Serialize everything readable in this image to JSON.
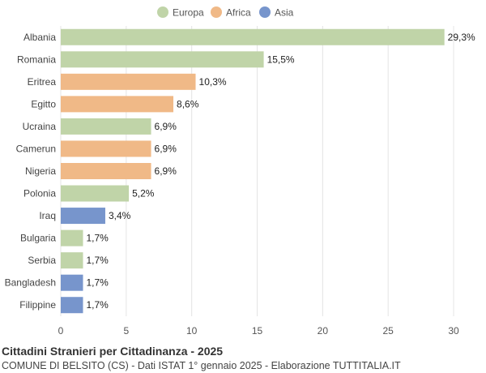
{
  "chart_data": {
    "type": "bar",
    "orientation": "horizontal",
    "title": "Cittadini Stranieri per Cittadinanza - 2025",
    "subtitle": "COMUNE DI BELSITO (CS) - Dati ISTAT 1° gennaio 2025 - Elaborazione TUTTITALIA.IT",
    "legend": [
      {
        "name": "Europa",
        "color": "#c0d4a8"
      },
      {
        "name": "Africa",
        "color": "#f0b987"
      },
      {
        "name": "Asia",
        "color": "#7795cc"
      }
    ],
    "legend_position": "top-center",
    "grid": true,
    "xlim": [
      0,
      30
    ],
    "xticks": [
      0,
      5,
      10,
      15,
      20,
      25,
      30
    ],
    "bars": [
      {
        "category": "Albania",
        "value": 29.3,
        "label": "29,3%",
        "group": "Europa"
      },
      {
        "category": "Romania",
        "value": 15.5,
        "label": "15,5%",
        "group": "Europa"
      },
      {
        "category": "Eritrea",
        "value": 10.3,
        "label": "10,3%",
        "group": "Africa"
      },
      {
        "category": "Egitto",
        "value": 8.6,
        "label": "8,6%",
        "group": "Africa"
      },
      {
        "category": "Ucraina",
        "value": 6.9,
        "label": "6,9%",
        "group": "Europa"
      },
      {
        "category": "Camerun",
        "value": 6.9,
        "label": "6,9%",
        "group": "Africa"
      },
      {
        "category": "Nigeria",
        "value": 6.9,
        "label": "6,9%",
        "group": "Africa"
      },
      {
        "category": "Polonia",
        "value": 5.2,
        "label": "5,2%",
        "group": "Europa"
      },
      {
        "category": "Iraq",
        "value": 3.4,
        "label": "3,4%",
        "group": "Asia"
      },
      {
        "category": "Bulgaria",
        "value": 1.7,
        "label": "1,7%",
        "group": "Europa"
      },
      {
        "category": "Serbia",
        "value": 1.7,
        "label": "1,7%",
        "group": "Europa"
      },
      {
        "category": "Bangladesh",
        "value": 1.7,
        "label": "1,7%",
        "group": "Asia"
      },
      {
        "category": "Filippine",
        "value": 1.7,
        "label": "1,7%",
        "group": "Asia"
      }
    ]
  }
}
